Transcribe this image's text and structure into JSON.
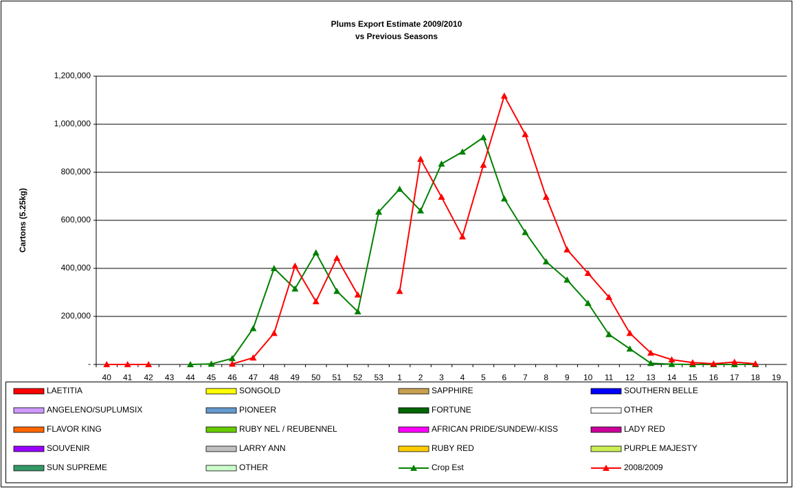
{
  "chart_data": {
    "type": "line",
    "title": "Plums Export Estimate 2009/2010",
    "subtitle": "vs  Previous Seasons",
    "y_label": "Cartons (5.25kg)",
    "categories": [
      "40",
      "41",
      "42",
      "43",
      "44",
      "45",
      "46",
      "47",
      "48",
      "49",
      "50",
      "51",
      "52",
      "53",
      "1",
      "2",
      "3",
      "4",
      "5",
      "6",
      "7",
      "8",
      "9",
      "10",
      "11",
      "12",
      "13",
      "14",
      "15",
      "16",
      "17",
      "18",
      "19"
    ],
    "ylim": [
      0,
      1200000
    ],
    "yticks": [
      {
        "value": 0,
        "label": "-"
      },
      {
        "value": 200000,
        "label": "200,000"
      },
      {
        "value": 400000,
        "label": "400,000"
      },
      {
        "value": 600000,
        "label": "600,000"
      },
      {
        "value": 800000,
        "label": "800,000"
      },
      {
        "value": 1000000,
        "label": "1,000,000"
      },
      {
        "value": 1200000,
        "label": "1,200,000"
      }
    ],
    "grid": true,
    "series": [
      {
        "name": "LAETITIA",
        "color": "#ff0000"
      },
      {
        "name": "SONGOLD",
        "color": "#ffff00"
      },
      {
        "name": "SAPPHIRE",
        "color": "#c8a050"
      },
      {
        "name": "SOUTHERN BELLE",
        "color": "#0000ff"
      },
      {
        "name": "ANGELENO/SUPLUMSIX",
        "color": "#cc99ff"
      },
      {
        "name": "PIONEER",
        "color": "#6699cc"
      },
      {
        "name": "FORTUNE",
        "color": "#006600"
      },
      {
        "name": "OTHER",
        "color": "#ffffff"
      },
      {
        "name": "FLAVOR KING",
        "color": "#ff6600"
      },
      {
        "name": "RUBY NEL / REUBENNEL",
        "color": "#66cc00"
      },
      {
        "name": "AFRICAN PRIDE/SUNDEW/-KISS",
        "color": "#ff00ff"
      },
      {
        "name": "LADY RED",
        "color": "#cc0099"
      },
      {
        "name": "SOUVENIR",
        "color": "#9900ff"
      },
      {
        "name": "LARRY ANN",
        "color": "#c0c0c0"
      },
      {
        "name": "RUBY RED",
        "color": "#ffcc00"
      },
      {
        "name": "PURPLE MAJESTY",
        "color": "#ccee55"
      },
      {
        "name": "SUN SUPREME",
        "color": "#339966"
      },
      {
        "name": "OTHER",
        "color": "#ccffcc"
      },
      {
        "name": "Crop Est",
        "color": "#008000",
        "values": [
          null,
          null,
          null,
          null,
          0,
          2000,
          25000,
          150000,
          400000,
          315000,
          465000,
          305000,
          220000,
          635000,
          730000,
          640000,
          835000,
          885000,
          945000,
          690000,
          550000,
          428000,
          352000,
          255000,
          125000,
          65000,
          5000,
          1000,
          0,
          0,
          0,
          0,
          null
        ]
      },
      {
        "name": "2008/2009",
        "color": "#ff0000",
        "values": [
          0,
          0,
          0,
          null,
          null,
          null,
          2000,
          28000,
          130000,
          410000,
          262000,
          443000,
          290000,
          null,
          305000,
          855000,
          697000,
          532000,
          830000,
          1118000,
          958000,
          697000,
          478000,
          380000,
          280000,
          130000,
          48000,
          20000,
          8000,
          3000,
          10000,
          3000,
          null
        ]
      }
    ]
  }
}
